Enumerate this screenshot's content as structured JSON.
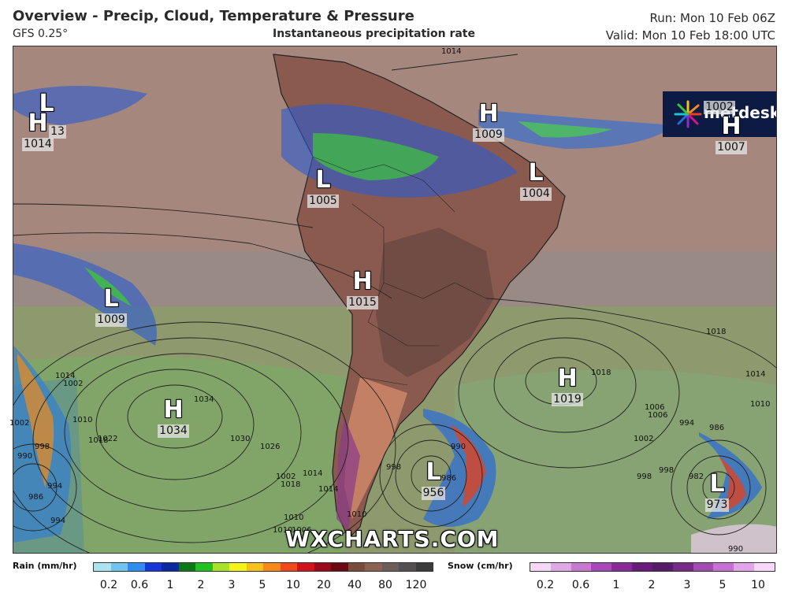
{
  "header": {
    "title": "Overview - Precip, Cloud, Temperature & Pressure",
    "model": "GFS 0.25°",
    "subtitle": "Instantaneous precipitation rate",
    "run": "Run: Mon 10 Feb 06Z",
    "valid": "Valid: Mon 10 Feb 18:00 UTC"
  },
  "brand": {
    "logo_text": "metdesk",
    "watermark": "WXCHARTS.COM"
  },
  "pressure_centers": [
    {
      "type": "L",
      "value": "13"
    },
    {
      "type": "H",
      "value": "1014"
    },
    {
      "type": "L",
      "value": "1005"
    },
    {
      "type": "H",
      "value": "1009"
    },
    {
      "type": "L",
      "value": "1004"
    },
    {
      "type": "L",
      "value": "1002"
    },
    {
      "type": "H",
      "value": "1007"
    },
    {
      "type": "L",
      "value": "1009"
    },
    {
      "type": "H",
      "value": "1015"
    },
    {
      "type": "H",
      "value": "1034"
    },
    {
      "type": "H",
      "value": "1019"
    },
    {
      "type": "L",
      "value": "956"
    },
    {
      "type": "L",
      "value": "973"
    }
  ],
  "isobar_labels": [
    "1014",
    "1018",
    "1014",
    "1010",
    "1002",
    "1006",
    "998",
    "994",
    "990",
    "986",
    "982",
    "986",
    "990",
    "998",
    "994",
    "1002",
    "1010",
    "1014",
    "1018",
    "1022",
    "1026",
    "1030",
    "1034",
    "1018",
    "1014",
    "1010",
    "1006",
    "1002",
    "998",
    "990",
    "986",
    "994",
    "998",
    "1002",
    "1006",
    "1010",
    "1018",
    "1014",
    "1010"
  ],
  "legend": {
    "rain_label": "Rain (mm/hr)",
    "rain_ticks": [
      "0.2",
      "0.6",
      "1",
      "2",
      "3",
      "5",
      "10",
      "20",
      "40",
      "80",
      "120"
    ],
    "rain_colors": [
      "#a8e4f4",
      "#6ec6f0",
      "#2f8df0",
      "#1537d8",
      "#0a2a9e",
      "#0d7a1a",
      "#1fc21f",
      "#a8e22a",
      "#f4f41c",
      "#f8c21a",
      "#f88a1a",
      "#f0481a",
      "#d0141a",
      "#9a0a1a",
      "#6a0a12",
      "#7a4a3c",
      "#8a6252",
      "#6e5e58",
      "#555050",
      "#3c3c3c"
    ],
    "snow_label": "Snow (cm/hr)",
    "snow_ticks": [
      "0.2",
      "0.6",
      "1",
      "2",
      "3",
      "5",
      "10"
    ],
    "snow_colors": [
      "#f4d8f4",
      "#e0a8e4",
      "#c878d0",
      "#a848b8",
      "#8a2a9a",
      "#6a1a7a",
      "#5a1a6a",
      "#7a2a8a",
      "#a44ab4",
      "#c86ed4",
      "#e4a4ec",
      "#f8d8f8"
    ]
  }
}
